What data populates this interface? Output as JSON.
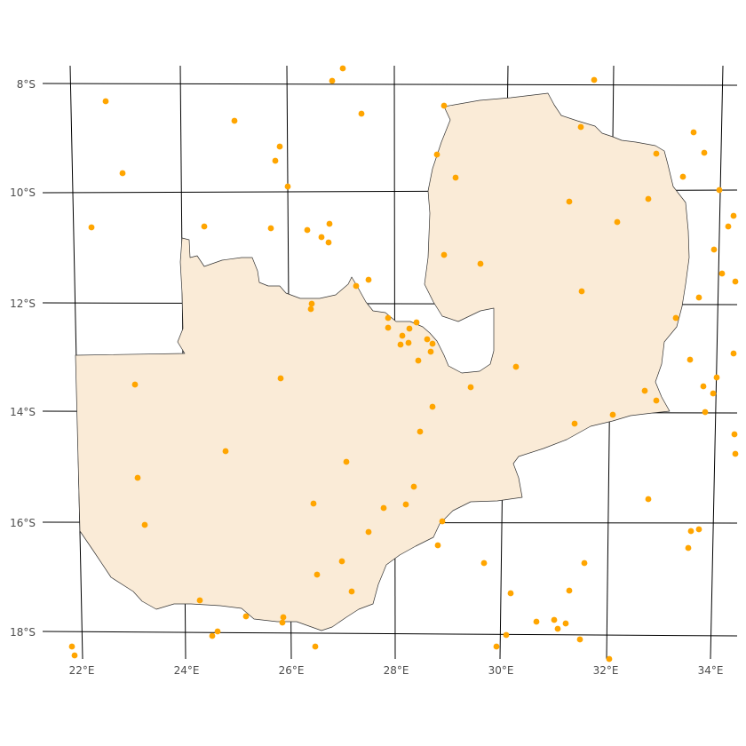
{
  "map": {
    "fill_color": "#FAEBD7",
    "point_color": "#FFA500",
    "graticule_color": "#000000"
  },
  "axes": {
    "lat_labels": [
      "8°S",
      "10°S",
      "12°S",
      "14°S",
      "16°S",
      "18°S"
    ],
    "lon_labels": [
      "22°E",
      "24°E",
      "26°E",
      "28°E",
      "30°E",
      "32°E",
      "34°E"
    ]
  }
}
